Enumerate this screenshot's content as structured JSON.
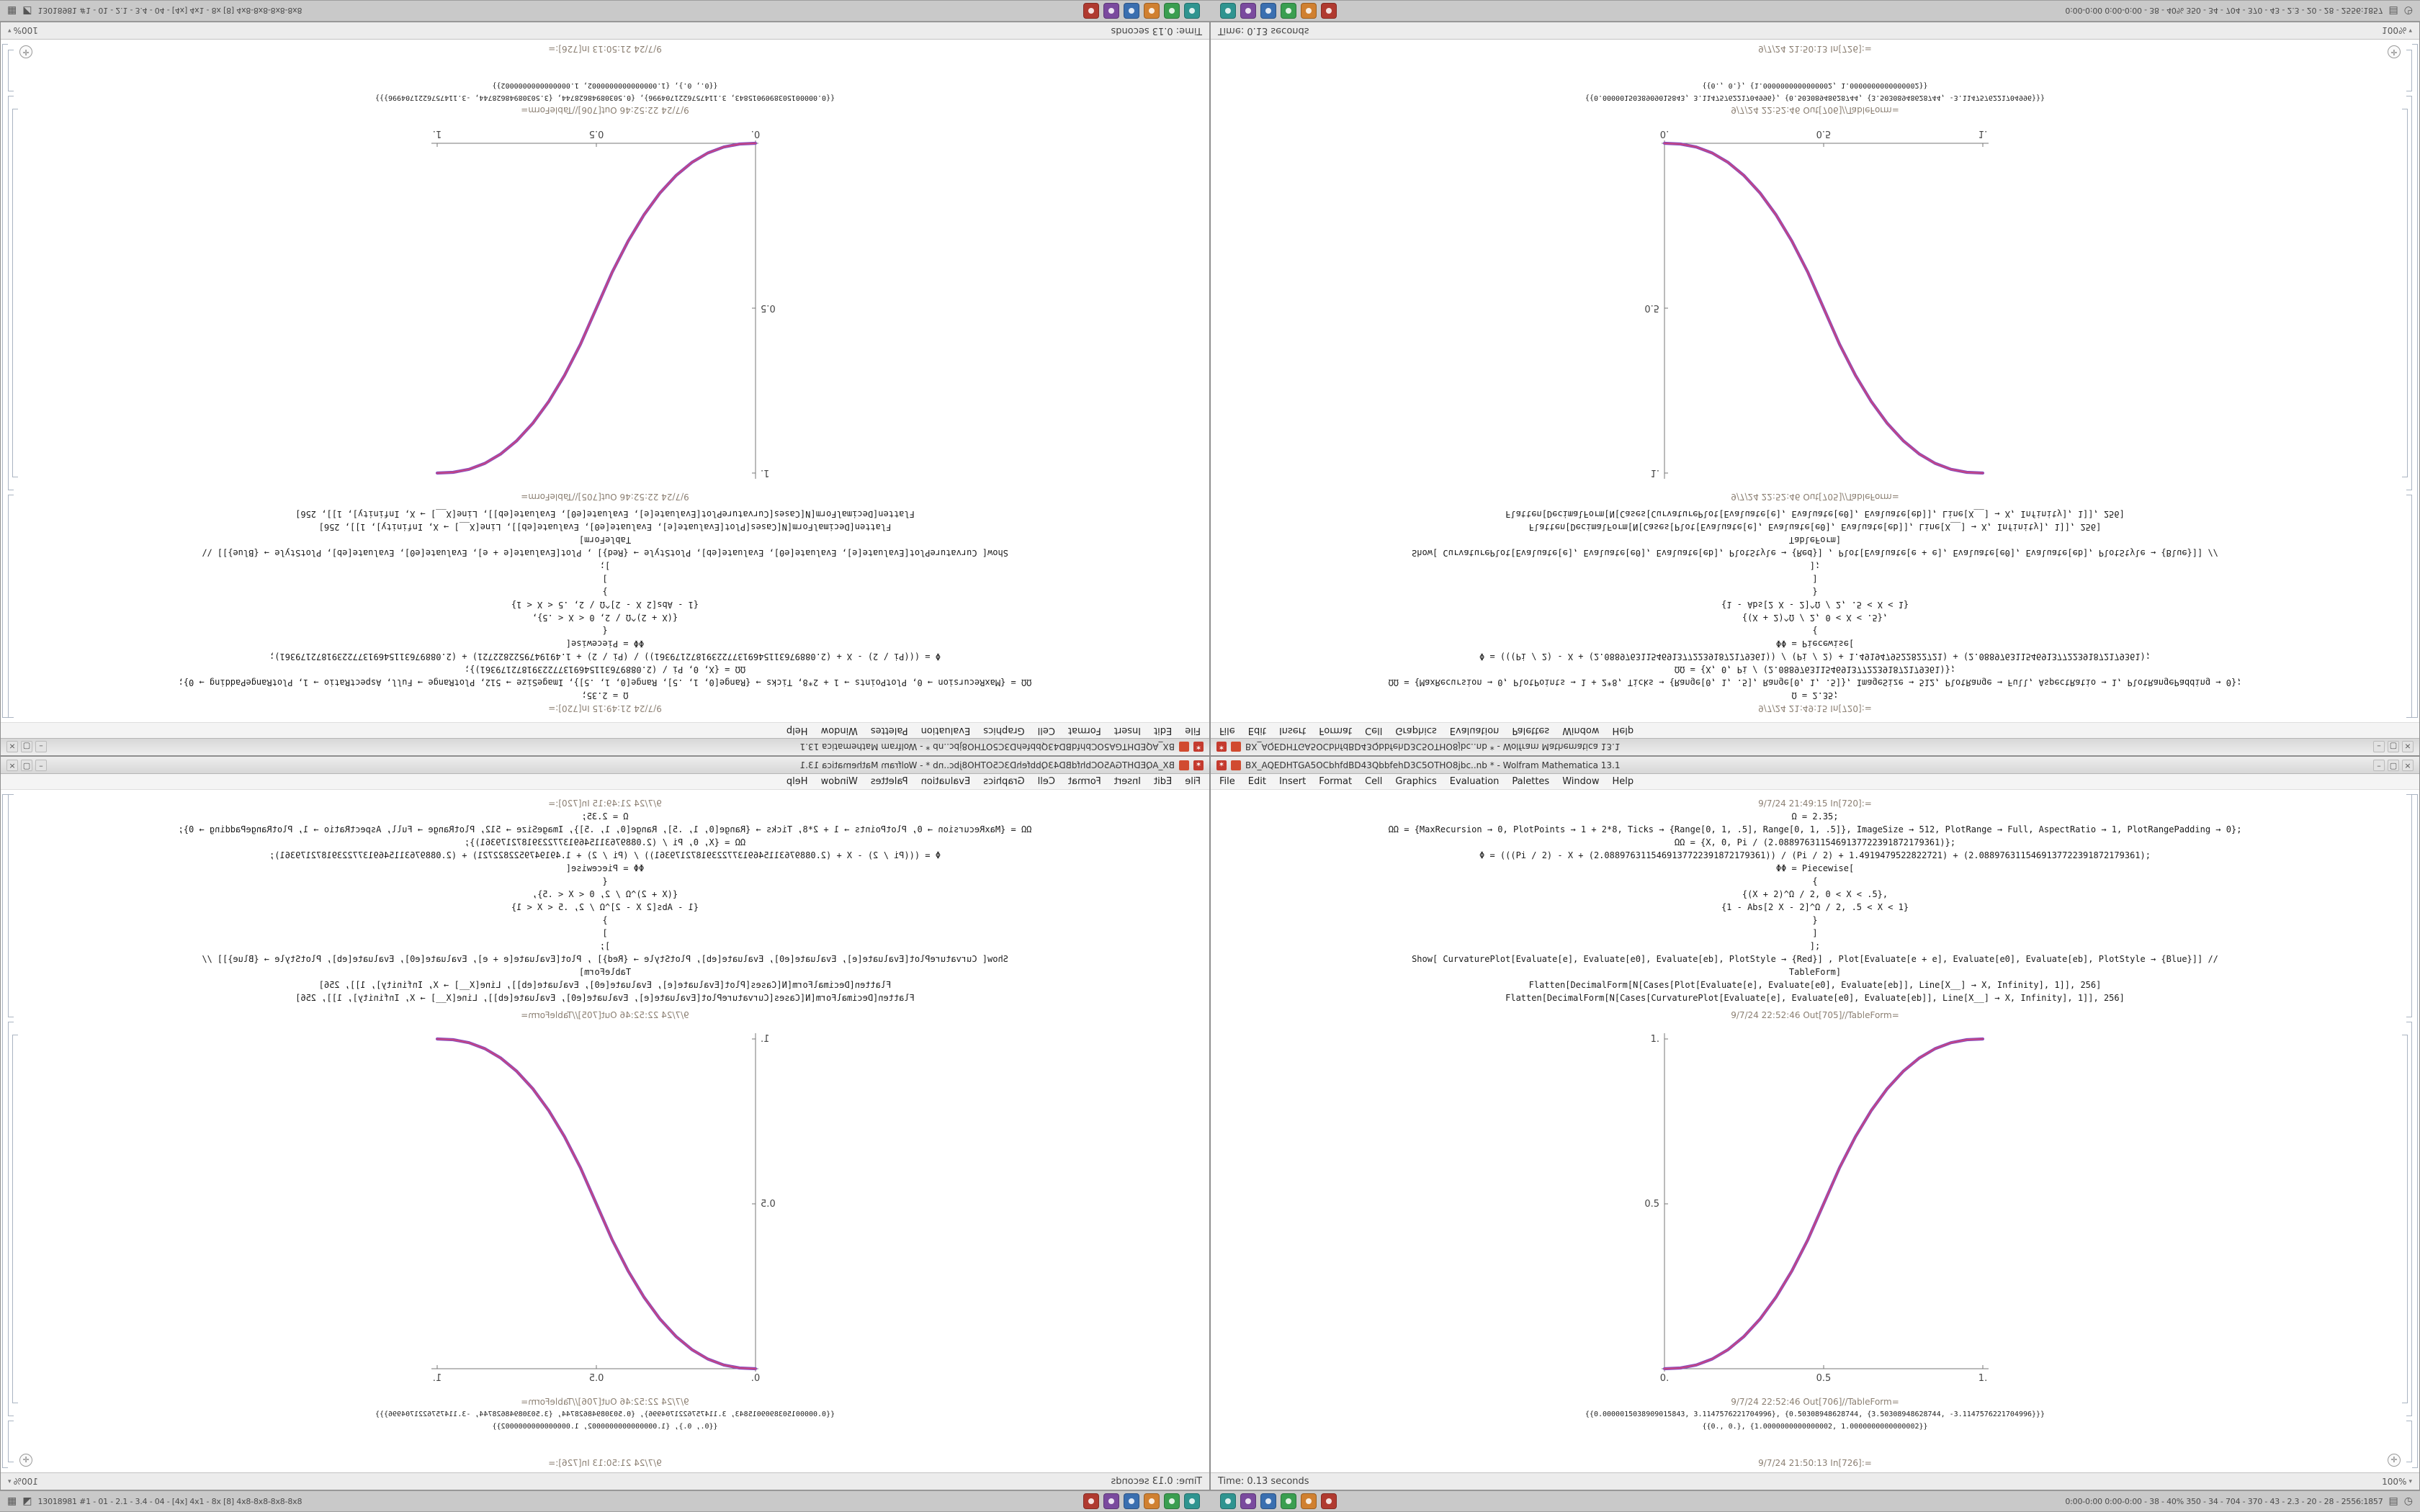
{
  "taskbar": {
    "left_icons": [
      {
        "name": "grid-icon",
        "glyph": "▦"
      },
      {
        "name": "launcher-icon",
        "glyph": "◩"
      }
    ],
    "left_text": "13018981 #1 - 01 - 2.1 - 3.4 - 04 - [4x] 4x1 - 8x [8] 4x8-8x8-8x8-8x8",
    "app_icons_group1": [
      {
        "name": "taskbar-app-icon",
        "color": "#b03a30"
      },
      {
        "name": "taskbar-app-icon",
        "color": "#7a4a9e"
      },
      {
        "name": "taskbar-app-icon",
        "color": "#3a6fb0"
      },
      {
        "name": "taskbar-app-icon",
        "color": "#d08030"
      },
      {
        "name": "taskbar-app-icon",
        "color": "#3a9e50"
      },
      {
        "name": "taskbar-app-icon",
        "color": "#2f9490"
      }
    ],
    "app_icons_group2": [
      {
        "name": "taskbar-app-icon",
        "color": "#2f9490"
      },
      {
        "name": "taskbar-app-icon",
        "color": "#7a4a9e"
      },
      {
        "name": "taskbar-app-icon",
        "color": "#3a6fb0"
      },
      {
        "name": "taskbar-app-icon",
        "color": "#3a9e50"
      },
      {
        "name": "taskbar-app-icon",
        "color": "#d08030"
      },
      {
        "name": "taskbar-app-icon",
        "color": "#b03a30"
      }
    ],
    "right_text": "0:00-0:00 0:00-0:00 - 38 - 40% 350 - 34 - 704 - 370 - 43 - 2.3 - 20 - 28 - 2556:1857",
    "right_icons": [
      {
        "name": "network-icon",
        "glyph": "▤"
      },
      {
        "name": "clock-icon",
        "glyph": "◷"
      }
    ]
  },
  "window": {
    "app_icon_glyph": "✶",
    "title": "BX_AQEDHTGA5OCbhfdBD43QbbfehD3C5OTHO8jbc..nb * - Wolfram Mathematica 13.1",
    "menu": [
      "File",
      "Edit",
      "Insert",
      "Format",
      "Cell",
      "Graphics",
      "Evaluation",
      "Palettes",
      "Window",
      "Help"
    ],
    "controls": {
      "minimize": "–",
      "maximize": "▢",
      "close": "×"
    },
    "status": {
      "time_text": "Time: 0.13 seconds",
      "magnification": "100%"
    },
    "cells": {
      "in_label_top": "9/7/24 21:49:15 In[720]:=",
      "code_lines": [
        "Ω = 2.35;",
        "ΩΩ = {MaxRecursion → 0, PlotPoints → 1 + 2*8, Ticks → {Range[0, 1, .5], Range[0, 1, .5]}, ImageSize → 512, PlotRange → Full, AspectRatio → 1, PlotRangePadding → 0};",
        "ΩΩ = {X, 0, Pi / (2.0889763115469137722391872179361)};",
        "Φ = (((Pi / 2) - X + (2.0889763115469137722391872179361)) / (Pi / 2) + 1.4919479522822721) + (2.0889763115469137722391872179361);",
        "ΦΦ = Piecewise[",
        "{",
        "{(X + 2)^Ω / 2, 0 < X < .5},",
        "{1 - Abs[2 X - 2]^Ω / 2, .5 < X < 1}",
        "}",
        "]",
        "];",
        "Show[ CurvaturePlot[Evaluate[e], Evaluate[e0], Evaluate[eb], PlotStyle → {Red}] , Plot[Evaluate[e + e], Evaluate[e0], Evaluate[eb], PlotStyle → {Blue}]] //",
        "TableForm]",
        "Flatten[DecimalForm[N[Cases[Plot[Evaluate[e], Evaluate[e0], Evaluate[eb]], Line[X__] → X, Infinity], 1]], 256]",
        "Flatten[DecimalForm[N[Cases[CurvaturePlot[Evaluate[e], Evaluate[e0], Evaluate[eb]], Line[X__] → X, Infinity], 1]], 256]"
      ],
      "out1_label": "9/7/24 22:52:46 Out[705]//TableForm=",
      "out2_label": "9/7/24 22:52:46 Out[706]//TableForm=",
      "out_rows": [
        "{{0.0000015038909015843, 3.1147576221704996}, {0.50308948628744, {3.50308948628744, -3.1147576221704996}}}",
        "{{0., 0.}, {1.0000000000000002, 1.0000000000000002}}"
      ],
      "in_label_bottom": "9/7/24 21:50:13 In[726]:="
    }
  },
  "chart_data": {
    "type": "line",
    "title": "",
    "xlabel": "",
    "ylabel": "",
    "xlim": [
      0,
      1
    ],
    "ylim": [
      0,
      1
    ],
    "grid": false,
    "legend": "none",
    "xticks": [
      {
        "v": 0,
        "label": "0."
      },
      {
        "v": 0.5,
        "label": "0.5"
      },
      {
        "v": 1,
        "label": "1."
      }
    ],
    "yticks": [
      {
        "v": 0.5,
        "label": "0.5"
      },
      {
        "v": 1,
        "label": "1."
      }
    ],
    "series": [
      {
        "name": "piecewise-power-sigmoid",
        "outer_color": "#8a4bbf",
        "inner_color": "#c8457e",
        "x": [
          0,
          0.05,
          0.1,
          0.15,
          0.2,
          0.25,
          0.3,
          0.35,
          0.4,
          0.45,
          0.5,
          0.55,
          0.6,
          0.65,
          0.7,
          0.75,
          0.8,
          0.85,
          0.9,
          0.95,
          1
        ],
        "y": [
          0,
          0.0022,
          0.0114,
          0.0295,
          0.058,
          0.098,
          0.1505,
          0.2163,
          0.2962,
          0.3903,
          0.5,
          0.6097,
          0.7038,
          0.7837,
          0.8495,
          0.902,
          0.942,
          0.9705,
          0.9886,
          0.9978,
          1
        ]
      }
    ]
  }
}
